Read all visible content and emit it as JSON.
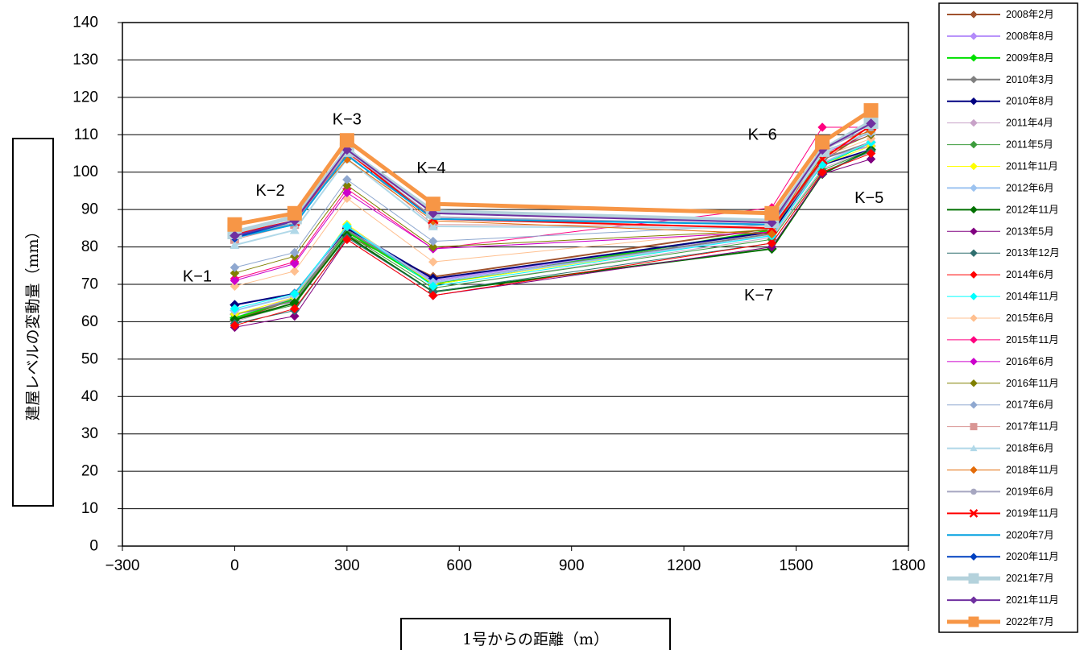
{
  "chart_data": {
    "type": "line",
    "title": "",
    "xlabel": "1号からの距離（m）",
    "ylabel": "建屋レベルの変動量（mm）",
    "xlim": [
      -300,
      1800
    ],
    "ylim": [
      0,
      140
    ],
    "xticks": [
      -300,
      0,
      300,
      600,
      900,
      1200,
      1500,
      1800
    ],
    "yticks": [
      0,
      10,
      20,
      30,
      40,
      50,
      60,
      70,
      80,
      90,
      100,
      110,
      120,
      130,
      140
    ],
    "xtick_labels": [
      "−300",
      "0",
      "300",
      "600",
      "900",
      "1200",
      "1500",
      "1800"
    ],
    "ytick_labels": [
      "0",
      "10",
      "20",
      "30",
      "40",
      "50",
      "60",
      "70",
      "80",
      "90",
      "100",
      "110",
      "120",
      "130",
      "140"
    ],
    "grid": "horizontal",
    "legend_position": "right",
    "x": [
      0,
      160,
      300,
      530,
      1435,
      1570,
      1700
    ],
    "point_labels": [
      {
        "text": "K−1",
        "x": -100,
        "y": 72
      },
      {
        "text": "K−2",
        "x": 95,
        "y": 95
      },
      {
        "text": "K−3",
        "x": 300,
        "y": 114
      },
      {
        "text": "K−4",
        "x": 525,
        "y": 101
      },
      {
        "text": "K−6",
        "x": 1410,
        "y": 110
      },
      {
        "text": "K−5",
        "x": 1695,
        "y": 93
      },
      {
        "text": "K−7",
        "x": 1400,
        "y": 67
      }
    ],
    "series": [
      {
        "name": "2008年2月",
        "color": "#A0522D",
        "marker": "diamond",
        "width": 2,
        "values": [
          60.5,
          66,
          83,
          72,
          85,
          103,
          111.5
        ]
      },
      {
        "name": "2008年8月",
        "color": "#B38BFA",
        "marker": "diamond",
        "width": 2,
        "values": [
          61,
          66.5,
          84,
          71,
          84,
          104,
          107
        ]
      },
      {
        "name": "2009年8月",
        "color": "#00E000",
        "marker": "diamond",
        "width": 2,
        "values": [
          61,
          66,
          84,
          70,
          84.5,
          102,
          108
        ]
      },
      {
        "name": "2010年3月",
        "color": "#808080",
        "marker": "diamond",
        "width": 2,
        "values": [
          62,
          65.5,
          84.5,
          70.5,
          83.5,
          103.5,
          108
        ]
      },
      {
        "name": "2010年8月",
        "color": "#000080",
        "marker": "diamond",
        "width": 2,
        "values": [
          64.5,
          67.5,
          85,
          71.5,
          84,
          102,
          106
        ]
      },
      {
        "name": "2011年4月",
        "color": "#C8A2C8",
        "marker": "diamond",
        "width": 1,
        "values": [
          60,
          65,
          83.5,
          69,
          82.5,
          101,
          106
        ]
      },
      {
        "name": "2011年5月",
        "color": "#3C9C3C",
        "marker": "diamond",
        "width": 1,
        "values": [
          60.5,
          64.5,
          83.5,
          69,
          82,
          100.5,
          106
        ]
      },
      {
        "name": "2011年11月",
        "color": "#FFFF00",
        "marker": "diamond",
        "width": 1,
        "values": [
          62,
          66.5,
          86,
          70,
          83,
          102,
          107
        ]
      },
      {
        "name": "2012年6月",
        "color": "#9CC3F0",
        "marker": "diamond",
        "width": 2,
        "values": [
          63,
          67,
          85.5,
          70.5,
          83,
          102.5,
          108
        ]
      },
      {
        "name": "2012年11月",
        "color": "#007000",
        "marker": "diamond",
        "width": 2,
        "values": [
          60.5,
          65,
          83,
          68,
          79.5,
          99.5,
          106
        ]
      },
      {
        "name": "2013年5月",
        "color": "#800080",
        "marker": "diamond",
        "width": 1,
        "values": [
          58.5,
          61.5,
          82,
          67,
          80,
          99.5,
          103.5
        ]
      },
      {
        "name": "2013年12月",
        "color": "#2F6F6F",
        "marker": "diamond",
        "width": 1,
        "values": [
          59.5,
          63,
          82.5,
          68,
          81,
          100,
          105.5
        ]
      },
      {
        "name": "2014年6月",
        "color": "#FF0000",
        "marker": "diamond",
        "width": 1,
        "values": [
          59,
          63.5,
          82,
          67,
          81,
          100,
          105
        ]
      },
      {
        "name": "2014年11月",
        "color": "#00FFFF",
        "marker": "diamond",
        "width": 1,
        "values": [
          63.5,
          67.5,
          85.5,
          69.5,
          83,
          102,
          108
        ]
      },
      {
        "name": "2015年6月",
        "color": "#FFC090",
        "marker": "diamond",
        "width": 1,
        "values": [
          69.5,
          73.5,
          93,
          76,
          85,
          104,
          109
        ]
      },
      {
        "name": "2015年11月",
        "color": "#FF0080",
        "marker": "diamond",
        "width": 1,
        "values": [
          71.5,
          76,
          95.5,
          79.5,
          90.5,
          112,
          112
        ]
      },
      {
        "name": "2016年6月",
        "color": "#CC00CC",
        "marker": "diamond",
        "width": 1,
        "values": [
          71,
          75.5,
          94.5,
          79.5,
          84,
          105,
          110
        ]
      },
      {
        "name": "2016年11月",
        "color": "#808000",
        "marker": "diamond",
        "width": 1,
        "values": [
          73,
          77.5,
          96.5,
          80,
          84.5,
          104.5,
          110
        ]
      },
      {
        "name": "2017年6月",
        "color": "#8FA8D0",
        "marker": "diamond",
        "width": 1,
        "values": [
          74.5,
          78.5,
          98,
          81.5,
          86,
          105.5,
          110.5
        ]
      },
      {
        "name": "2017年11月",
        "color": "#D99694",
        "marker": "square",
        "width": 1,
        "values": [
          82,
          86,
          105,
          86,
          85.5,
          106,
          112
        ]
      },
      {
        "name": "2018年6月",
        "color": "#B0D8E8",
        "marker": "triangle",
        "width": 2,
        "values": [
          80.5,
          84.5,
          103.5,
          85.5,
          85,
          105,
          111
        ]
      },
      {
        "name": "2018年11月",
        "color": "#E36C0A",
        "marker": "diamond",
        "width": 1,
        "values": [
          83.5,
          87,
          103.5,
          87,
          83.5,
          107,
          111
        ]
      },
      {
        "name": "2019年6月",
        "color": "#A6A6C0",
        "marker": "circle",
        "width": 2,
        "values": [
          82.5,
          86.5,
          105.5,
          88,
          86,
          106,
          112
        ]
      },
      {
        "name": "2019年11月",
        "color": "#FF0000",
        "marker": "x",
        "width": 2,
        "values": [
          83.5,
          87,
          105.5,
          87.5,
          85,
          103.5,
          112.5
        ]
      },
      {
        "name": "2020年7月",
        "color": "#00A0E0",
        "marker": "none",
        "width": 2,
        "values": [
          82.5,
          86,
          104.5,
          87.5,
          86,
          106,
          113
        ]
      },
      {
        "name": "2020年11月",
        "color": "#0040C0",
        "marker": "diamond",
        "width": 2,
        "values": [
          82.5,
          87,
          106.5,
          89,
          87,
          106,
          113
        ]
      },
      {
        "name": "2021年7月",
        "color": "#B4D2DC",
        "marker": "square",
        "width": 5,
        "values": [
          84,
          88,
          106,
          89.5,
          87,
          106,
          113.5
        ]
      },
      {
        "name": "2021年11月",
        "color": "#7030A0",
        "marker": "diamond",
        "width": 2,
        "values": [
          83,
          87,
          106,
          89,
          86.5,
          106,
          113
        ]
      },
      {
        "name": "2022年7月",
        "color": "#F79646",
        "marker": "square",
        "width": 5,
        "values": [
          86,
          89,
          108.5,
          91.5,
          89,
          108,
          116.5
        ]
      }
    ]
  }
}
